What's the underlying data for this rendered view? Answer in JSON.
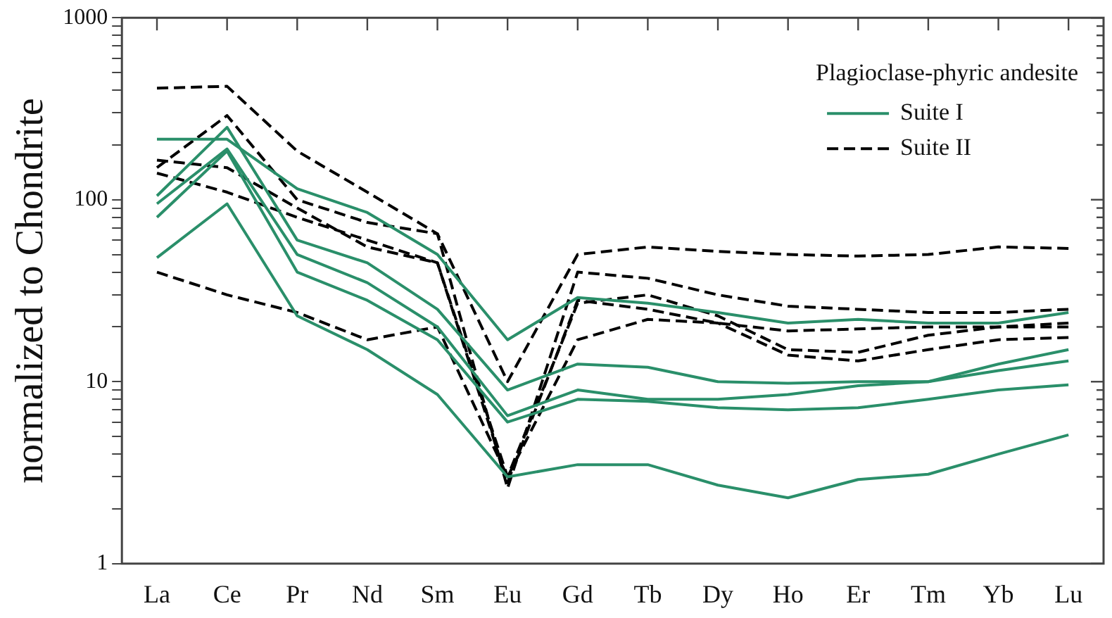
{
  "chart_data": {
    "type": "line",
    "ylabel": "normalized to Chondrite",
    "legend_title": "Plagioclase-phyric andesite",
    "legend": "top right",
    "grid": false,
    "log": "y",
    "marker": "none",
    "categories": [
      "La",
      "Ce",
      "Pr",
      "Nd",
      "Sm",
      "Eu",
      "Gd",
      "Tb",
      "Dy",
      "Ho",
      "Er",
      "Tm",
      "Yb",
      "Lu"
    ],
    "ylim": [
      1,
      1000
    ],
    "yticks": [
      1,
      {
        "value": 2,
        "label": null
      },
      {
        "value": 3,
        "label": null
      },
      {
        "value": 4,
        "label": null
      },
      {
        "value": 5,
        "label": null
      },
      {
        "value": 6,
        "label": null
      },
      {
        "value": 7,
        "label": null
      },
      {
        "value": 8,
        "label": null
      },
      {
        "value": 9,
        "label": null
      },
      10,
      {
        "value": 20,
        "label": null
      },
      {
        "value": 30,
        "label": null
      },
      {
        "value": 40,
        "label": null
      },
      {
        "value": 50,
        "label": null
      },
      {
        "value": 60,
        "label": null
      },
      {
        "value": 70,
        "label": null
      },
      {
        "value": 80,
        "label": null
      },
      {
        "value": 90,
        "label": null
      },
      100,
      {
        "value": 200,
        "label": null
      },
      {
        "value": 300,
        "label": null
      },
      {
        "value": 400,
        "label": null
      },
      {
        "value": 500,
        "label": null
      },
      {
        "value": 600,
        "label": null
      },
      {
        "value": 700,
        "label": null
      },
      {
        "value": 800,
        "label": null
      },
      {
        "value": 900,
        "label": null
      },
      1000
    ],
    "series": [
      {
        "name": "Suite I",
        "color": "#2a8f6a",
        "line_style": "solid",
        "values": [
          215,
          215,
          115,
          85,
          50,
          17,
          29,
          27,
          24,
          21,
          22,
          21,
          21,
          24
        ]
      },
      {
        "color": "#2a8f6a",
        "line_style": "solid",
        "values": [
          105,
          250,
          60,
          45,
          25,
          9,
          12.5,
          12,
          10,
          9.8,
          10,
          10,
          12.5,
          15
        ]
      },
      {
        "color": "#2a8f6a",
        "line_style": "solid",
        "values": [
          95,
          190,
          50,
          35,
          20,
          6.5,
          9,
          8,
          8,
          8.5,
          9.5,
          10,
          11.5,
          13
        ]
      },
      {
        "color": "#2a8f6a",
        "line_style": "solid",
        "values": [
          80,
          185,
          40,
          28,
          17,
          6,
          8,
          7.8,
          7.2,
          7,
          7.2,
          8,
          9,
          9.6
        ]
      },
      {
        "color": "#2a8f6a",
        "line_style": "solid",
        "values": [
          48,
          95,
          23,
          15,
          8.5,
          3,
          3.5,
          3.5,
          2.7,
          2.3,
          2.9,
          3.1,
          4,
          5.1
        ]
      },
      {
        "name": "Suite II",
        "color": "#000000",
        "line_style": "dashed",
        "values": [
          410,
          420,
          185,
          110,
          65,
          10,
          50,
          55,
          52,
          50,
          49,
          50,
          55,
          54
        ]
      },
      {
        "color": "#000000",
        "line_style": "dashed",
        "values": [
          150,
          290,
          100,
          75,
          65,
          2.6,
          40,
          37,
          30,
          26,
          25,
          24,
          24,
          25
        ]
      },
      {
        "color": "#000000",
        "line_style": "dashed",
        "values": [
          165,
          150,
          90,
          55,
          45,
          3,
          27,
          30,
          23,
          15,
          14.5,
          18,
          20,
          20
        ]
      },
      {
        "color": "#000000",
        "line_style": "dashed",
        "values": [
          140,
          110,
          80,
          60,
          45,
          2.8,
          28,
          25,
          21,
          19,
          19.5,
          20,
          20,
          21
        ]
      },
      {
        "color": "#000000",
        "line_style": "dashed",
        "values": [
          40,
          30,
          24,
          17,
          20,
          3,
          17,
          22,
          21,
          14,
          13,
          15,
          17,
          17.5
        ]
      }
    ]
  }
}
